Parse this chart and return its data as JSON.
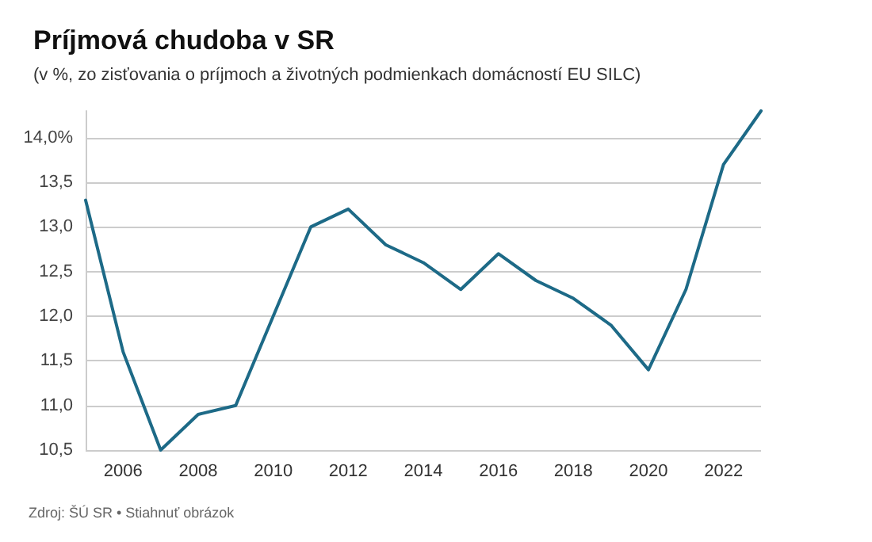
{
  "chart_data": {
    "type": "line",
    "title": "Príjmová chudoba v SR",
    "subtitle": "(v %, zo zisťovania o príjmoch a životných podmienkach domácností EU SILC)",
    "x": [
      2005,
      2006,
      2007,
      2008,
      2009,
      2010,
      2011,
      2012,
      2013,
      2014,
      2015,
      2016,
      2017,
      2018,
      2019,
      2020,
      2021,
      2022,
      2023
    ],
    "series": [
      {
        "color": "#1d6a87",
        "values": [
          13.3,
          11.6,
          10.5,
          10.9,
          11.0,
          12.0,
          13.0,
          13.2,
          12.8,
          12.6,
          12.3,
          12.7,
          12.4,
          12.2,
          11.9,
          11.4,
          12.3,
          13.7,
          14.3
        ]
      }
    ],
    "xlim": [
      2005,
      2023
    ],
    "xticks": [
      2006,
      2008,
      2010,
      2012,
      2014,
      2016,
      2018,
      2020,
      2022
    ],
    "yticks": [
      {
        "value": 10.5,
        "label": "10,5"
      },
      {
        "value": 11,
        "label": "11,0"
      },
      {
        "value": 11.5,
        "label": "11,5"
      },
      {
        "value": 12,
        "label": "12,0"
      },
      {
        "value": 12.5,
        "label": "12,5"
      },
      {
        "value": 13,
        "label": "13,0"
      },
      {
        "value": 13.5,
        "label": "13,5"
      },
      {
        "value": 14,
        "label": "14,0%"
      }
    ],
    "ylim": [
      10.5,
      14.3
    ],
    "grid": "y",
    "marker": "none",
    "line_style": "solid",
    "annotations": [
      "Zdroj: ŠÚ SR • Stiahnuť obrázok"
    ]
  }
}
